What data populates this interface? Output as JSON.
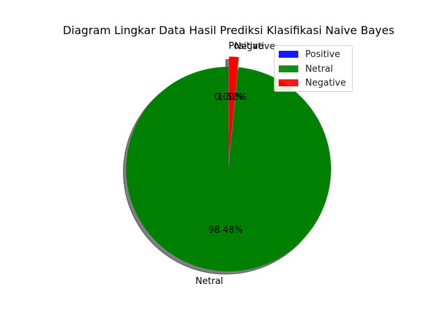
{
  "chart_data": {
    "type": "pie",
    "title": "Diagram Lingkar Data Hasil Prediksi Klasifikasi Naive Bayes",
    "labels": [
      "Positive",
      "Netral",
      "Negative"
    ],
    "values": [
      0.0,
      98.48,
      1.52
    ],
    "autopct_labels": [
      "0.00%",
      "98.48%",
      "1.52%"
    ],
    "colors": [
      "#0000ff",
      "#008000",
      "#ff0000"
    ],
    "explode": [
      0.1,
      0,
      0.1
    ],
    "start_angle_degrees": 90,
    "shadow": true,
    "legend": {
      "placement": "upper right",
      "entries": [
        "Positive",
        "Netral",
        "Negative"
      ]
    }
  }
}
